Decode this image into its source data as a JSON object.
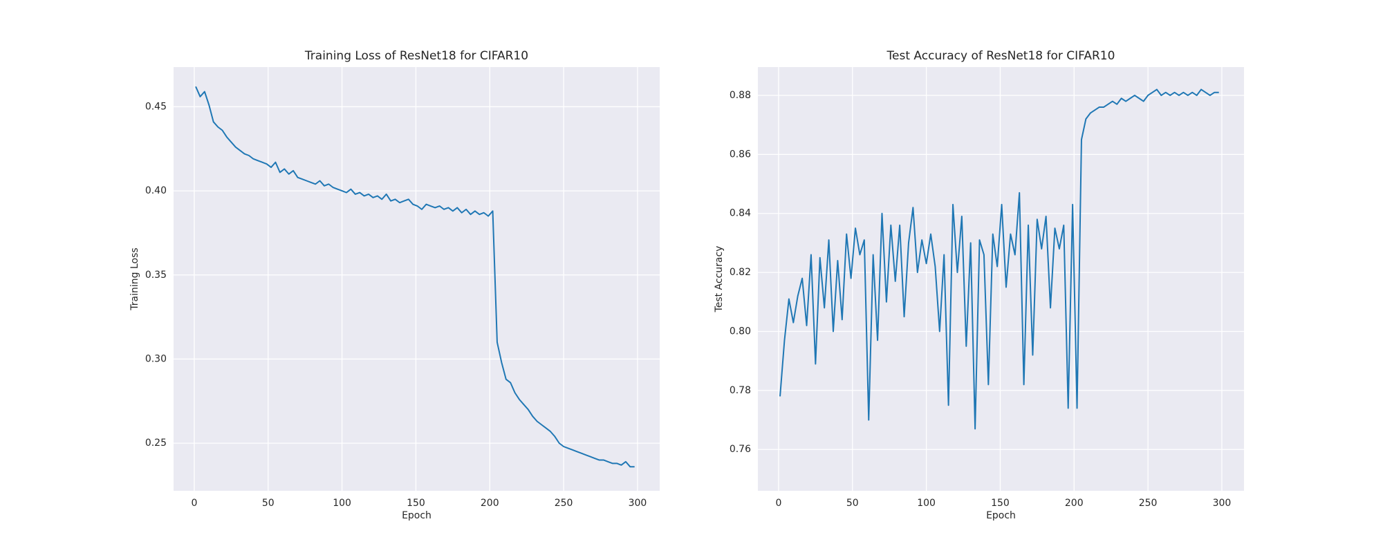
{
  "chart_data": [
    {
      "type": "line",
      "title": "Training Loss of ResNet18 for CIFAR10",
      "xlabel": "Epoch",
      "ylabel": "Training Loss",
      "color": "#1f77b4",
      "grid": true,
      "xlim": [
        -14,
        315
      ],
      "ylim": [
        0.2217,
        0.4736
      ],
      "xticks": [
        0,
        50,
        100,
        150,
        200,
        250,
        300
      ],
      "yticks": [
        0.25,
        {
          "value": 0.3,
          "label": "0.30"
        },
        0.35,
        {
          "value": 0.4,
          "label": "0.40"
        },
        0.45
      ],
      "x": [
        1,
        4,
        7,
        10,
        13,
        16,
        19,
        22,
        25,
        28,
        31,
        34,
        37,
        40,
        43,
        46,
        49,
        52,
        55,
        58,
        61,
        64,
        67,
        70,
        73,
        76,
        79,
        82,
        85,
        88,
        91,
        94,
        97,
        100,
        103,
        106,
        109,
        112,
        115,
        118,
        121,
        124,
        127,
        130,
        133,
        136,
        139,
        142,
        145,
        148,
        151,
        154,
        157,
        160,
        163,
        166,
        169,
        172,
        175,
        178,
        181,
        184,
        187,
        190,
        193,
        196,
        199,
        202,
        205,
        208,
        211,
        214,
        217,
        220,
        223,
        226,
        229,
        232,
        235,
        238,
        241,
        244,
        247,
        250,
        253,
        256,
        259,
        262,
        265,
        268,
        271,
        274,
        277,
        280,
        283,
        286,
        289,
        292,
        295,
        298
      ],
      "values": [
        0.462,
        0.456,
        0.459,
        0.451,
        0.441,
        0.438,
        0.436,
        0.432,
        0.429,
        0.426,
        0.424,
        0.422,
        0.421,
        0.419,
        0.418,
        0.417,
        0.416,
        0.414,
        0.417,
        0.411,
        0.413,
        0.41,
        0.412,
        0.408,
        0.407,
        0.406,
        0.405,
        0.404,
        0.406,
        0.403,
        0.404,
        0.402,
        0.401,
        0.4,
        0.399,
        0.401,
        0.398,
        0.399,
        0.397,
        0.398,
        0.396,
        0.397,
        0.395,
        0.398,
        0.394,
        0.395,
        0.393,
        0.394,
        0.395,
        0.392,
        0.391,
        0.389,
        0.392,
        0.391,
        0.39,
        0.391,
        0.389,
        0.39,
        0.388,
        0.39,
        0.387,
        0.389,
        0.386,
        0.388,
        0.386,
        0.387,
        0.385,
        0.388,
        0.31,
        0.298,
        0.288,
        0.286,
        0.28,
        0.276,
        0.273,
        0.27,
        0.266,
        0.263,
        0.261,
        0.259,
        0.257,
        0.254,
        0.25,
        0.248,
        0.247,
        0.246,
        0.245,
        0.244,
        0.243,
        0.242,
        0.241,
        0.24,
        0.24,
        0.239,
        0.238,
        0.238,
        0.237,
        0.239,
        0.236,
        0.236
      ]
    },
    {
      "type": "line",
      "title": "Test Accuracy of ResNet18 for CIFAR10",
      "xlabel": "Epoch",
      "ylabel": "Test Accuracy",
      "color": "#1f77b4",
      "grid": true,
      "xlim": [
        -14,
        315
      ],
      "ylim": [
        0.746,
        0.8896
      ],
      "xticks": [
        0,
        50,
        100,
        150,
        200,
        250,
        300
      ],
      "yticks": [
        0.76,
        0.78,
        {
          "value": 0.8,
          "label": "0.80"
        },
        0.82,
        0.84,
        0.86,
        0.88
      ],
      "x": [
        1,
        4,
        7,
        10,
        13,
        16,
        19,
        22,
        25,
        28,
        31,
        34,
        37,
        40,
        43,
        46,
        49,
        52,
        55,
        58,
        61,
        64,
        67,
        70,
        73,
        76,
        79,
        82,
        85,
        88,
        91,
        94,
        97,
        100,
        103,
        106,
        109,
        112,
        115,
        118,
        121,
        124,
        127,
        130,
        133,
        136,
        139,
        142,
        145,
        148,
        151,
        154,
        157,
        160,
        163,
        166,
        169,
        172,
        175,
        178,
        181,
        184,
        187,
        190,
        193,
        196,
        199,
        202,
        205,
        208,
        211,
        214,
        217,
        220,
        223,
        226,
        229,
        232,
        235,
        238,
        241,
        244,
        247,
        250,
        253,
        256,
        259,
        262,
        265,
        268,
        271,
        274,
        277,
        280,
        283,
        286,
        289,
        292,
        295,
        298
      ],
      "values": [
        0.778,
        0.797,
        0.811,
        0.803,
        0.812,
        0.818,
        0.802,
        0.826,
        0.789,
        0.825,
        0.808,
        0.831,
        0.8,
        0.824,
        0.804,
        0.833,
        0.818,
        0.835,
        0.826,
        0.831,
        0.77,
        0.826,
        0.797,
        0.84,
        0.81,
        0.836,
        0.817,
        0.836,
        0.805,
        0.83,
        0.842,
        0.82,
        0.831,
        0.823,
        0.833,
        0.822,
        0.8,
        0.826,
        0.775,
        0.843,
        0.82,
        0.839,
        0.795,
        0.83,
        0.767,
        0.831,
        0.826,
        0.782,
        0.833,
        0.822,
        0.843,
        0.815,
        0.833,
        0.826,
        0.847,
        0.782,
        0.836,
        0.792,
        0.838,
        0.828,
        0.839,
        0.808,
        0.835,
        0.828,
        0.836,
        0.774,
        0.843,
        0.774,
        0.865,
        0.872,
        0.874,
        0.875,
        0.876,
        0.876,
        0.877,
        0.878,
        0.877,
        0.879,
        0.878,
        0.879,
        0.88,
        0.879,
        0.878,
        0.88,
        0.881,
        0.882,
        0.88,
        0.881,
        0.88,
        0.881,
        0.88,
        0.881,
        0.88,
        0.881,
        0.88,
        0.882,
        0.881,
        0.88,
        0.881,
        0.881
      ]
    }
  ]
}
